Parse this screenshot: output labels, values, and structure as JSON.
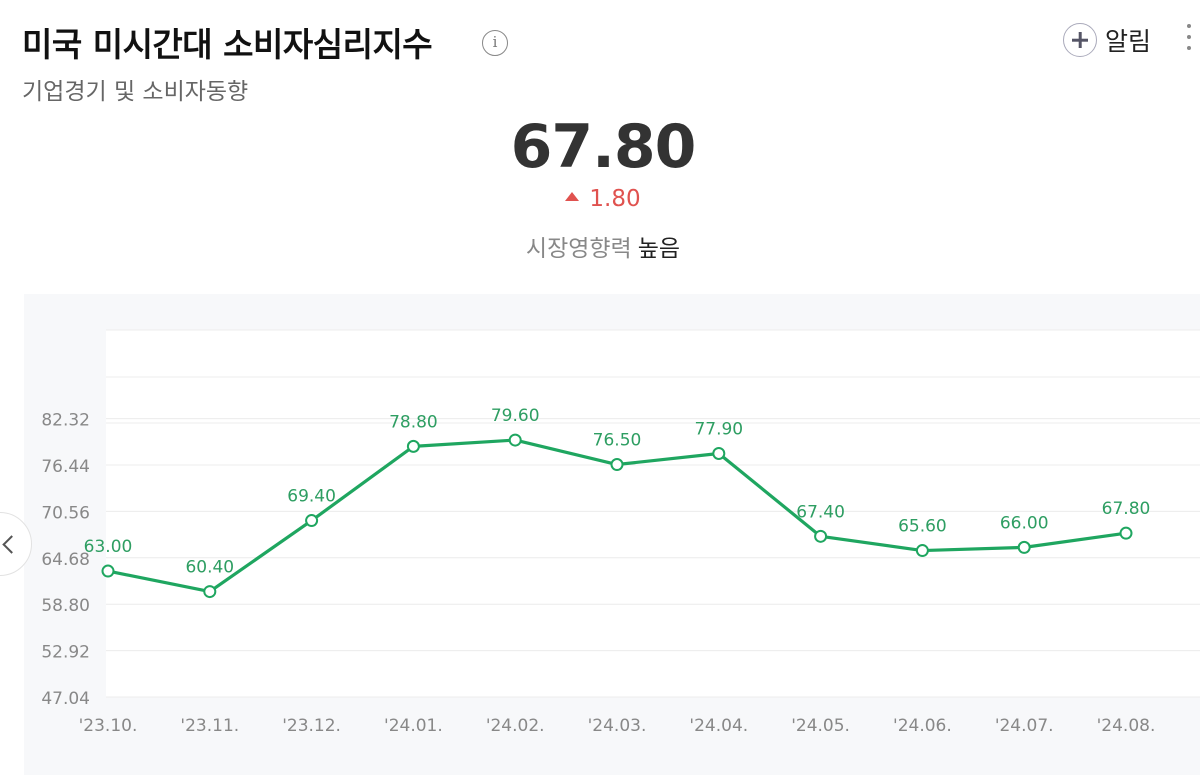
{
  "header": {
    "title": "미국 미시간대 소비자심리지수",
    "subtitle": "기업경기 및 소비자동향",
    "info_icon": "info-icon",
    "alarm_label": "알림"
  },
  "summary": {
    "value": "67.80",
    "change": "1.80",
    "change_direction": "up",
    "impact_label": "시장영향력",
    "impact_level": "높음"
  },
  "colors": {
    "line": "#1fa660",
    "label": "#2e9e62",
    "up": "#e0524f"
  },
  "chart_data": {
    "type": "line",
    "categories": [
      "'23.10.",
      "'23.11.",
      "'23.12.",
      "'24.01.",
      "'24.02.",
      "'24.03.",
      "'24.04.",
      "'24.05.",
      "'24.06.",
      "'24.07.",
      "'24.08."
    ],
    "series": [
      {
        "values": [
          63.0,
          60.4,
          69.4,
          78.8,
          79.6,
          76.5,
          77.9,
          67.4,
          65.6,
          66.0,
          67.8
        ],
        "labels": [
          "63.00",
          "60.40",
          "69.40",
          "78.80",
          "79.60",
          "76.50",
          "77.90",
          "67.40",
          "65.60",
          "66.00",
          "67.80"
        ]
      }
    ],
    "yticks": [
      "47.04",
      "52.92",
      "58.80",
      "64.68",
      "70.56",
      "76.44",
      "82.32"
    ],
    "ylim": [
      47.04,
      82.32
    ],
    "grid": true,
    "legend": "none"
  }
}
